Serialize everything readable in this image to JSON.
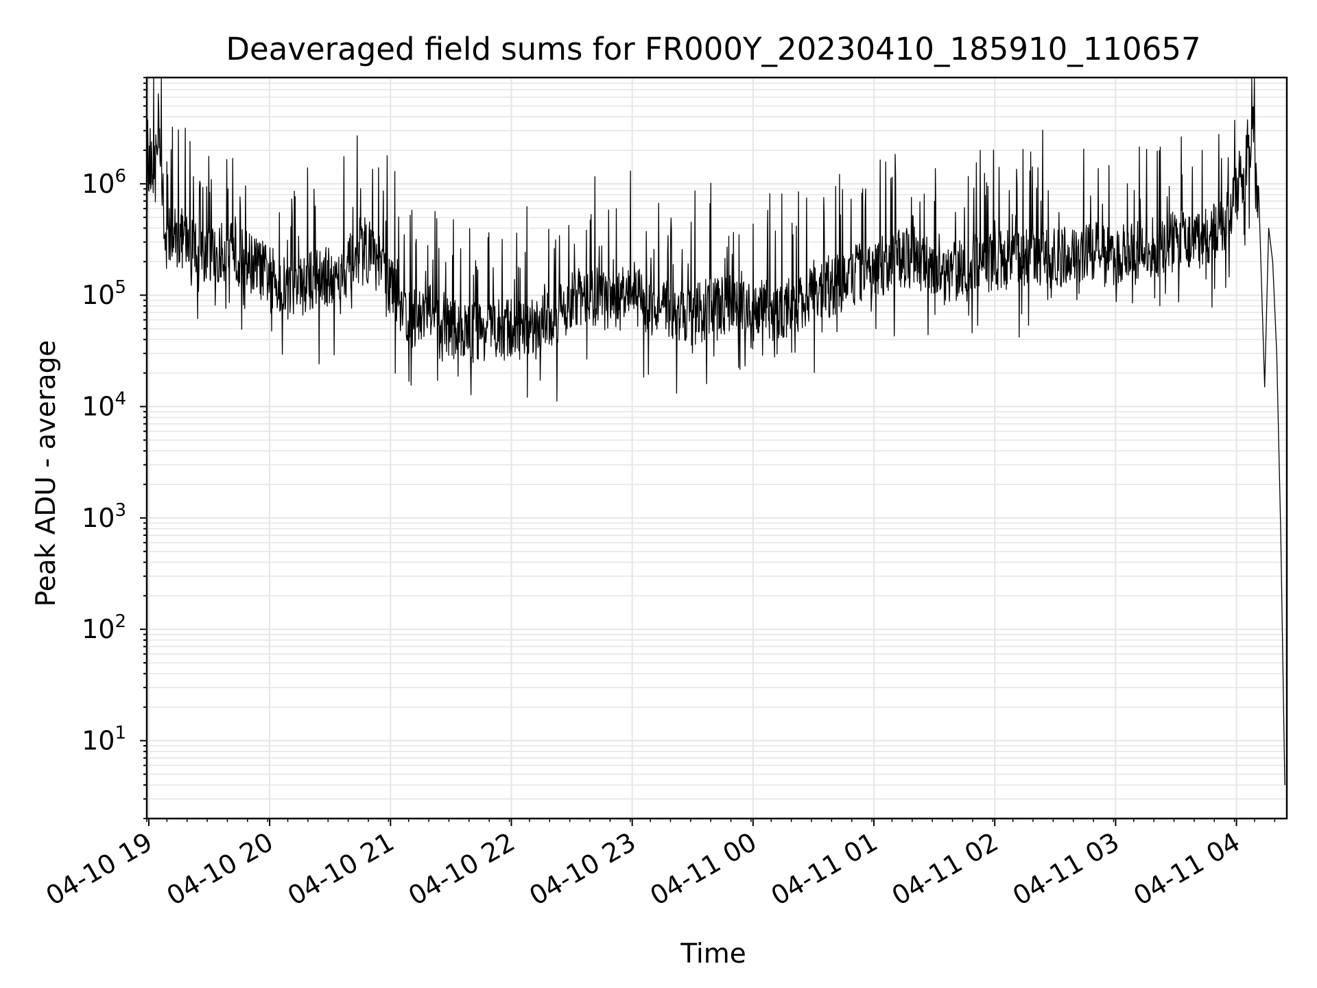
{
  "chart_data": {
    "type": "line",
    "title": "Deaveraged field sums for FR000Y_20230410_185910_110657",
    "xlabel": "Time",
    "ylabel": "Peak ADU - average",
    "yscale": "log",
    "ylim": [
      2,
      9000000
    ],
    "xlim": [
      "2023-04-10 18:59",
      "2023-04-11 04:25"
    ],
    "grid": true,
    "line_color": "#000000",
    "grid_color": "#e5e5e5",
    "x_ticks": [
      "04-10 19",
      "04-10 20",
      "04-10 21",
      "04-10 22",
      "04-10 23",
      "04-11 00",
      "04-11 01",
      "04-11 02",
      "04-11 03",
      "04-11 04"
    ],
    "y_ticks": [
      {
        "value": 10,
        "base": "10",
        "exp": "1"
      },
      {
        "value": 100,
        "base": "10",
        "exp": "2"
      },
      {
        "value": 1000,
        "base": "10",
        "exp": "3"
      },
      {
        "value": 10000,
        "base": "10",
        "exp": "4"
      },
      {
        "value": 100000,
        "base": "10",
        "exp": "5"
      },
      {
        "value": 1000000,
        "base": "10",
        "exp": "6"
      }
    ],
    "series": [
      {
        "x": [
          "2023-04-10 18:59",
          "2023-04-10 19:02",
          "2023-04-10 19:05",
          "2023-04-10 19:08",
          "2023-04-10 19:12",
          "2023-04-10 19:20",
          "2023-04-10 19:30",
          "2023-04-10 19:40",
          "2023-04-10 19:50",
          "2023-04-10 20:00",
          "2023-04-10 20:10",
          "2023-04-10 20:20",
          "2023-04-10 20:30",
          "2023-04-10 20:40",
          "2023-04-10 20:50",
          "2023-04-10 21:00",
          "2023-04-10 21:10",
          "2023-04-10 21:20",
          "2023-04-10 21:30",
          "2023-04-10 21:40",
          "2023-04-10 21:50",
          "2023-04-10 22:00",
          "2023-04-10 22:10",
          "2023-04-10 22:20",
          "2023-04-10 22:30",
          "2023-04-10 22:40",
          "2023-04-10 22:50",
          "2023-04-10 23:00",
          "2023-04-10 23:10",
          "2023-04-10 23:20",
          "2023-04-10 23:30",
          "2023-04-10 23:40",
          "2023-04-10 23:50",
          "2023-04-11 00:00",
          "2023-04-11 00:10",
          "2023-04-11 00:20",
          "2023-04-11 00:30",
          "2023-04-11 00:40",
          "2023-04-11 00:50",
          "2023-04-11 01:00",
          "2023-04-11 01:10",
          "2023-04-11 01:20",
          "2023-04-11 01:30",
          "2023-04-11 01:40",
          "2023-04-11 01:50",
          "2023-04-11 02:00",
          "2023-04-11 02:10",
          "2023-04-11 02:20",
          "2023-04-11 02:30",
          "2023-04-11 02:40",
          "2023-04-11 02:50",
          "2023-04-11 03:00",
          "2023-04-11 03:10",
          "2023-04-11 03:20",
          "2023-04-11 03:30",
          "2023-04-11 03:40",
          "2023-04-11 03:50",
          "2023-04-11 04:00",
          "2023-04-11 04:05",
          "2023-04-11 04:08",
          "2023-04-11 04:11",
          "2023-04-11 04:14",
          "2023-04-11 04:16",
          "2023-04-11 04:18",
          "2023-04-11 04:20",
          "2023-04-11 04:22",
          "2023-04-11 04:24"
        ],
        "y": [
          1000000,
          1500000,
          4000000,
          300000,
          350000,
          300000,
          220000,
          250000,
          200000,
          150000,
          110000,
          130000,
          150000,
          190000,
          250000,
          120000,
          60000,
          70000,
          50000,
          45000,
          50000,
          50000,
          45000,
          60000,
          90000,
          100000,
          80000,
          110000,
          75000,
          70000,
          65000,
          80000,
          85000,
          90000,
          70000,
          80000,
          110000,
          120000,
          150000,
          170000,
          200000,
          220000,
          180000,
          160000,
          200000,
          200000,
          220000,
          230000,
          210000,
          240000,
          250000,
          230000,
          250000,
          270000,
          300000,
          320000,
          350000,
          700000,
          1500000,
          3500000,
          500000,
          15000,
          400000,
          200000,
          30000,
          700,
          4
        ]
      }
    ]
  }
}
